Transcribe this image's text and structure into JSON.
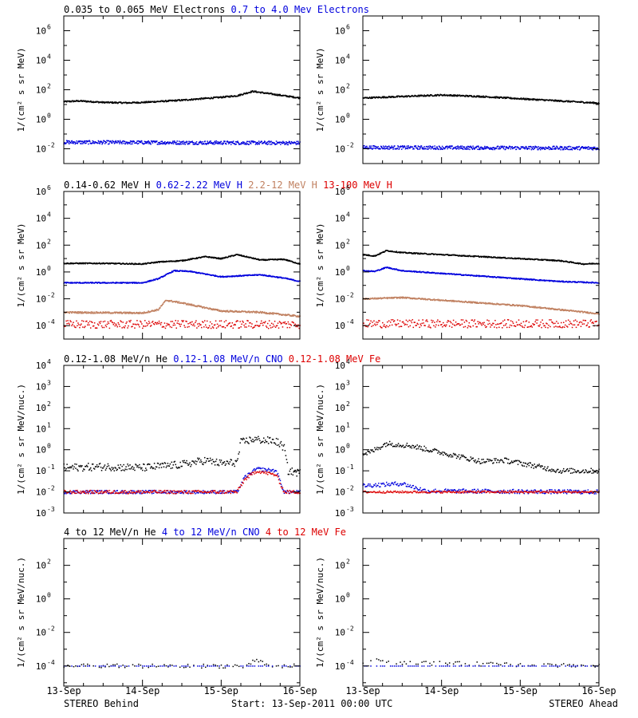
{
  "figure": {
    "footer_left": "STEREO Behind",
    "footer_center": "Start: 13-Sep-2011 00:00 UTC",
    "footer_right": "STEREO Ahead",
    "x_tick_labels": [
      "13-Sep",
      "14-Sep",
      "15-Sep",
      "16-Sep"
    ]
  },
  "chart_data": [
    {
      "type": "scatter",
      "row": 0,
      "spacecraft": "STEREO Behind",
      "ylabel": "1/(cm² s sr MeV)",
      "y_log": true,
      "ylim_exp": [
        -3,
        7
      ],
      "y_tick_labels": [
        {
          "exp": -2,
          "label": "10",
          "sup": "-2"
        },
        {
          "exp": 0,
          "label": "10",
          "sup": "0"
        },
        {
          "exp": 2,
          "label": "10",
          "sup": "2"
        },
        {
          "exp": 4,
          "label": "10",
          "sup": "4"
        },
        {
          "exp": 6,
          "label": "10",
          "sup": "6"
        }
      ],
      "x_days": [
        0,
        3
      ],
      "legend": [
        {
          "label": "0.035 to 0.065 MeV Electrons",
          "color": "#000000"
        },
        {
          "label": "0.7 to 4.0 Mev Electrons",
          "color": "#0000dd"
        }
      ],
      "series": [
        {
          "name": "0.035 to 0.065 MeV Electrons",
          "color": "#000000",
          "style": "dense",
          "noise": 0.05,
          "x": [
            0,
            0.2,
            0.5,
            0.8,
            1.0,
            1.5,
            2.0,
            2.2,
            2.4,
            2.6,
            3.0
          ],
          "y_log10": [
            1.2,
            1.25,
            1.15,
            1.12,
            1.15,
            1.3,
            1.5,
            1.6,
            1.9,
            1.75,
            1.45
          ]
        },
        {
          "name": "0.7 to 4.0 Mev Electrons",
          "color": "#0000dd",
          "style": "dense",
          "noise": 0.12,
          "x": [
            0,
            3
          ],
          "y_log10": [
            -1.55,
            -1.6
          ]
        }
      ]
    },
    {
      "type": "scatter",
      "row": 0,
      "spacecraft": "STEREO Ahead",
      "ylabel": "1/(cm² s sr MeV)",
      "y_log": true,
      "ylim_exp": [
        -3,
        7
      ],
      "y_tick_labels": [
        {
          "exp": -2,
          "label": "10",
          "sup": "-2"
        },
        {
          "exp": 0,
          "label": "10",
          "sup": "0"
        },
        {
          "exp": 2,
          "label": "10",
          "sup": "2"
        },
        {
          "exp": 4,
          "label": "10",
          "sup": "4"
        },
        {
          "exp": 6,
          "label": "10",
          "sup": "6"
        }
      ],
      "x_days": [
        0,
        3
      ],
      "legend": [],
      "series": [
        {
          "name": "0.035 to 0.065 MeV Electrons",
          "color": "#000000",
          "style": "dense",
          "noise": 0.05,
          "x": [
            0,
            0.5,
            1.0,
            1.5,
            2.0,
            2.5,
            3.0
          ],
          "y_log10": [
            1.45,
            1.55,
            1.65,
            1.55,
            1.4,
            1.25,
            1.1
          ]
        },
        {
          "name": "0.7 to 4.0 Mev Electrons",
          "color": "#0000dd",
          "style": "dense",
          "noise": 0.12,
          "x": [
            0,
            3
          ],
          "y_log10": [
            -1.9,
            -1.95
          ]
        }
      ]
    },
    {
      "type": "scatter",
      "row": 1,
      "spacecraft": "STEREO Behind",
      "ylabel": "1/(cm² s sr MeV)",
      "y_log": true,
      "ylim_exp": [
        -5,
        6
      ],
      "y_tick_labels": [
        {
          "exp": -4,
          "label": "10",
          "sup": "-4"
        },
        {
          "exp": -2,
          "label": "10",
          "sup": "-2"
        },
        {
          "exp": 0,
          "label": "10",
          "sup": "0"
        },
        {
          "exp": 2,
          "label": "10",
          "sup": "2"
        },
        {
          "exp": 4,
          "label": "10",
          "sup": "4"
        },
        {
          "exp": 6,
          "label": "10",
          "sup": "6"
        }
      ],
      "x_days": [
        0,
        3
      ],
      "legend": [
        {
          "label": "0.14-0.62 MeV H",
          "color": "#000000"
        },
        {
          "label": "0.62-2.22 MeV H",
          "color": "#0000dd"
        },
        {
          "label": "2.2-12 MeV H",
          "color": "#c08060"
        },
        {
          "label": "13-100 MeV H",
          "color": "#dd0000"
        }
      ],
      "series": [
        {
          "name": "0.14-0.62 MeV H",
          "color": "#000000",
          "style": "dense",
          "noise": 0.04,
          "x": [
            0,
            0.5,
            1.0,
            1.2,
            1.5,
            1.8,
            2.0,
            2.2,
            2.5,
            2.8,
            3.0
          ],
          "y_log10": [
            0.65,
            0.65,
            0.6,
            0.75,
            0.85,
            1.15,
            1.0,
            1.3,
            0.9,
            0.95,
            0.6
          ]
        },
        {
          "name": "0.62-2.22 MeV H",
          "color": "#0000dd",
          "style": "dense",
          "noise": 0.04,
          "x": [
            0,
            0.5,
            1.0,
            1.2,
            1.4,
            1.6,
            2.0,
            2.5,
            2.8,
            3.0
          ],
          "y_log10": [
            -0.8,
            -0.8,
            -0.8,
            -0.5,
            0.1,
            0.05,
            -0.35,
            -0.2,
            -0.45,
            -0.7
          ]
        },
        {
          "name": "2.2-12 MeV H",
          "color": "#c08060",
          "style": "dense",
          "noise": 0.06,
          "x": [
            0,
            1.0,
            1.2,
            1.3,
            1.5,
            2.0,
            2.5,
            3.0
          ],
          "y_log10": [
            -3.0,
            -3.05,
            -2.8,
            -2.1,
            -2.3,
            -2.9,
            -3.0,
            -3.3
          ]
        },
        {
          "name": "13-100 MeV H",
          "color": "#dd0000",
          "style": "noisy",
          "noise": 0.3,
          "x": [
            0,
            3
          ],
          "y_log10": [
            -3.9,
            -3.9
          ]
        }
      ]
    },
    {
      "type": "scatter",
      "row": 1,
      "spacecraft": "STEREO Ahead",
      "ylabel": "1/(cm² s sr MeV)",
      "y_log": true,
      "ylim_exp": [
        -5,
        6
      ],
      "y_tick_labels": [
        {
          "exp": -4,
          "label": "10",
          "sup": "-4"
        },
        {
          "exp": -2,
          "label": "10",
          "sup": "-2"
        },
        {
          "exp": 0,
          "label": "10",
          "sup": "0"
        },
        {
          "exp": 2,
          "label": "10",
          "sup": "2"
        },
        {
          "exp": 4,
          "label": "10",
          "sup": "4"
        },
        {
          "exp": 6,
          "label": "10",
          "sup": "6"
        }
      ],
      "x_days": [
        0,
        3
      ],
      "legend": [],
      "series": [
        {
          "name": "0.14-0.62 MeV H",
          "color": "#000000",
          "style": "dense",
          "noise": 0.04,
          "x": [
            0,
            0.15,
            0.3,
            0.5,
            1.0,
            1.5,
            2.0,
            2.5,
            2.8,
            3.0
          ],
          "y_log10": [
            1.3,
            1.2,
            1.6,
            1.45,
            1.3,
            1.15,
            1.0,
            0.85,
            0.6,
            0.65
          ]
        },
        {
          "name": "0.62-2.22 MeV H",
          "color": "#0000dd",
          "style": "dense",
          "noise": 0.04,
          "x": [
            0,
            0.15,
            0.3,
            0.5,
            1.0,
            1.5,
            2.0,
            2.5,
            3.0
          ],
          "y_log10": [
            0.1,
            0.05,
            0.35,
            0.1,
            -0.1,
            -0.3,
            -0.5,
            -0.7,
            -0.8
          ]
        },
        {
          "name": "2.2-12 MeV H",
          "color": "#c08060",
          "style": "dense",
          "noise": 0.05,
          "x": [
            0,
            0.5,
            1.0,
            1.5,
            2.0,
            2.5,
            3.0
          ],
          "y_log10": [
            -2.0,
            -1.9,
            -2.1,
            -2.3,
            -2.5,
            -2.8,
            -3.1
          ]
        },
        {
          "name": "13-100 MeV H",
          "color": "#dd0000",
          "style": "noisy",
          "noise": 0.3,
          "x": [
            0,
            3
          ],
          "y_log10": [
            -3.85,
            -3.85
          ]
        }
      ]
    },
    {
      "type": "scatter",
      "row": 2,
      "spacecraft": "STEREO Behind",
      "ylabel": "1/(cm² s sr MeV/nuc.)",
      "y_log": true,
      "ylim_exp": [
        -3,
        4
      ],
      "y_tick_labels": [
        {
          "exp": -3,
          "label": "10",
          "sup": "-3"
        },
        {
          "exp": -2,
          "label": "10",
          "sup": "-2"
        },
        {
          "exp": -1,
          "label": "10",
          "sup": "-1"
        },
        {
          "exp": 0,
          "label": "10",
          "sup": "0"
        },
        {
          "exp": 1,
          "label": "10",
          "sup": "1"
        },
        {
          "exp": 2,
          "label": "10",
          "sup": "2"
        },
        {
          "exp": 3,
          "label": "10",
          "sup": "3"
        },
        {
          "exp": 4,
          "label": "10",
          "sup": "4"
        }
      ],
      "x_days": [
        0,
        3
      ],
      "legend": [
        {
          "label": "0.12-1.08 MeV/n He",
          "color": "#000000"
        },
        {
          "label": "0.12-1.08 MeV/n CNO",
          "color": "#0000dd"
        },
        {
          "label": "0.12-1.08 MeV Fe",
          "color": "#dd0000"
        }
      ],
      "series": [
        {
          "name": "0.12-1.08 MeV/n He",
          "color": "#000000",
          "style": "noisy",
          "noise": 0.18,
          "x": [
            0,
            0.5,
            1.0,
            1.5,
            1.8,
            2.0,
            2.2,
            2.25,
            2.4,
            2.7,
            2.8,
            2.85,
            3.0
          ],
          "y_log10": [
            -0.85,
            -0.8,
            -0.85,
            -0.7,
            -0.5,
            -0.65,
            -0.6,
            0.35,
            0.5,
            0.4,
            0.1,
            -1.0,
            -1.1
          ]
        },
        {
          "name": "0.12-1.08 MeV/n CNO",
          "color": "#0000dd",
          "style": "noisy",
          "noise": 0.08,
          "x": [
            0,
            2.2,
            2.3,
            2.45,
            2.7,
            2.8,
            3.0
          ],
          "y_log10": [
            -2.0,
            -2.0,
            -1.3,
            -0.9,
            -1.0,
            -2.0,
            -2.0
          ]
        },
        {
          "name": "0.12-1.08 MeV Fe",
          "color": "#dd0000",
          "style": "noisy",
          "noise": 0.08,
          "x": [
            0,
            2.2,
            2.3,
            2.45,
            2.7,
            2.8,
            3.0
          ],
          "y_log10": [
            -2.0,
            -2.0,
            -1.4,
            -1.0,
            -1.2,
            -2.0,
            -2.0
          ]
        }
      ]
    },
    {
      "type": "scatter",
      "row": 2,
      "spacecraft": "STEREO Ahead",
      "ylabel": "1/(cm² s sr MeV/nuc.)",
      "y_log": true,
      "ylim_exp": [
        -3,
        4
      ],
      "y_tick_labels": [
        {
          "exp": -3,
          "label": "10",
          "sup": "-3"
        },
        {
          "exp": -2,
          "label": "10",
          "sup": "-2"
        },
        {
          "exp": -1,
          "label": "10",
          "sup": "-1"
        },
        {
          "exp": 0,
          "label": "10",
          "sup": "0"
        },
        {
          "exp": 1,
          "label": "10",
          "sup": "1"
        },
        {
          "exp": 2,
          "label": "10",
          "sup": "2"
        },
        {
          "exp": 3,
          "label": "10",
          "sup": "3"
        },
        {
          "exp": 4,
          "label": "10",
          "sup": "4"
        }
      ],
      "x_days": [
        0,
        3
      ],
      "legend": [],
      "series": [
        {
          "name": "0.12-1.08 MeV/n He",
          "color": "#000000",
          "style": "noisy",
          "noise": 0.12,
          "x": [
            0,
            0.1,
            0.3,
            0.6,
            0.9,
            1.2,
            1.5,
            1.8,
            2.1,
            2.5,
            3.0
          ],
          "y_log10": [
            -0.2,
            -0.1,
            0.3,
            0.2,
            -0.05,
            -0.3,
            -0.55,
            -0.5,
            -0.7,
            -1.0,
            -1.0
          ]
        },
        {
          "name": "0.12-1.08 MeV/n CNO",
          "color": "#0000dd",
          "style": "noisy",
          "noise": 0.1,
          "x": [
            0,
            0.5,
            0.8,
            3.0
          ],
          "y_log10": [
            -1.7,
            -1.6,
            -1.95,
            -2.0
          ]
        },
        {
          "name": "0.12-1.08 MeV Fe",
          "color": "#dd0000",
          "style": "noisy",
          "noise": 0.05,
          "x": [
            0,
            3.0
          ],
          "y_log10": [
            -2.0,
            -2.0
          ]
        }
      ]
    },
    {
      "type": "scatter",
      "row": 3,
      "spacecraft": "STEREO Behind",
      "ylabel": "1/(cm² s sr MeV/nuc.)",
      "y_log": true,
      "ylim_exp": [
        -5.2,
        3.6
      ],
      "y_tick_labels": [
        {
          "exp": -4,
          "label": "10",
          "sup": "-4"
        },
        {
          "exp": -2,
          "label": "10",
          "sup": "-2"
        },
        {
          "exp": 0,
          "label": "10",
          "sup": "0"
        },
        {
          "exp": 2,
          "label": "10",
          "sup": "2"
        }
      ],
      "x_days": [
        0,
        3
      ],
      "legend": [
        {
          "label": "4 to 12 MeV/n He",
          "color": "#000000"
        },
        {
          "label": "4 to 12 MeV/n CNO",
          "color": "#0000dd"
        },
        {
          "label": "4 to 12 MeV Fe",
          "color": "#dd0000"
        }
      ],
      "series": [
        {
          "name": "4 to 12 MeV/n He",
          "color": "#000000",
          "style": "sparse",
          "noise": 0.12,
          "x": [
            0,
            2.3,
            2.45,
            2.6,
            3.0
          ],
          "y_log10": [
            -4.0,
            -4.0,
            -3.6,
            -4.0,
            -4.0
          ]
        },
        {
          "name": "4 to 12 MeV/n CNO",
          "color": "#0000dd",
          "style": "sparse",
          "noise": 0.0,
          "x": [
            0,
            3.0
          ],
          "y_log10": [
            -4.0,
            -4.0
          ]
        }
      ]
    },
    {
      "type": "scatter",
      "row": 3,
      "spacecraft": "STEREO Ahead",
      "ylabel": "1/(cm² s sr MeV/nuc.)",
      "y_log": true,
      "ylim_exp": [
        -5.2,
        3.6
      ],
      "y_tick_labels": [
        {
          "exp": -4,
          "label": "10",
          "sup": "-4"
        },
        {
          "exp": -2,
          "label": "10",
          "sup": "-2"
        },
        {
          "exp": 0,
          "label": "10",
          "sup": "0"
        },
        {
          "exp": 2,
          "label": "10",
          "sup": "2"
        }
      ],
      "x_days": [
        0,
        3
      ],
      "legend": [],
      "series": [
        {
          "name": "4 to 12 MeV/n He",
          "color": "#000000",
          "style": "sparse",
          "noise": 0.12,
          "x": [
            0,
            0.2,
            0.5,
            3.0
          ],
          "y_log10": [
            -3.8,
            -3.6,
            -3.8,
            -4.0
          ]
        },
        {
          "name": "4 to 12 MeV/n CNO",
          "color": "#0000dd",
          "style": "sparse",
          "noise": 0.0,
          "x": [
            0,
            3.0
          ],
          "y_log10": [
            -4.0,
            -4.0
          ]
        }
      ]
    }
  ]
}
